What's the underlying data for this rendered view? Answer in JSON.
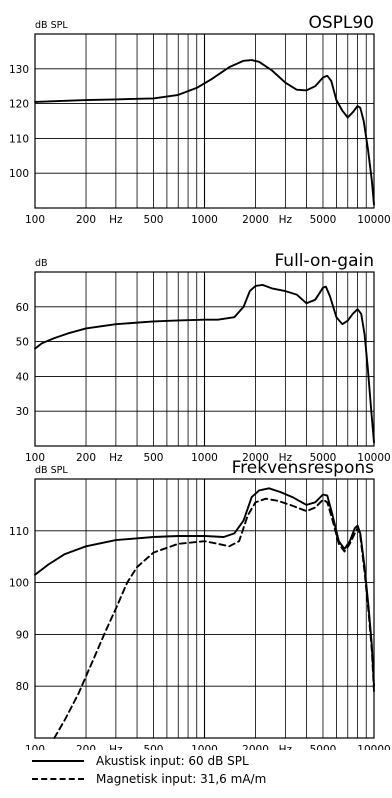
{
  "chart_data": [
    {
      "type": "line",
      "title": "OSPL90",
      "ylabel": "dB SPL",
      "xscale": "log",
      "xlim": [
        100,
        10000
      ],
      "ylim": [
        90,
        140
      ],
      "grid": true,
      "x_tick_labels": [
        "100",
        "200",
        "Hz",
        "500",
        "1000",
        "2000",
        "Hz",
        "5000",
        "10000"
      ],
      "y_tick_labels": [
        "130",
        "120",
        "110",
        "100"
      ],
      "series": [
        {
          "dash": false,
          "points": [
            [
              100,
              120.5
            ],
            [
              150,
              120.8
            ],
            [
              200,
              121
            ],
            [
              300,
              121.2
            ],
            [
              500,
              121.5
            ],
            [
              700,
              122.5
            ],
            [
              900,
              124.5
            ],
            [
              1100,
              127
            ],
            [
              1400,
              130.5
            ],
            [
              1700,
              132.3
            ],
            [
              1900,
              132.5
            ],
            [
              2100,
              132
            ],
            [
              2500,
              129.5
            ],
            [
              3000,
              126
            ],
            [
              3500,
              124
            ],
            [
              4000,
              123.8
            ],
            [
              4500,
              125
            ],
            [
              5000,
              127.5
            ],
            [
              5300,
              128
            ],
            [
              5600,
              126.5
            ],
            [
              6000,
              121
            ],
            [
              6500,
              118
            ],
            [
              7000,
              116
            ],
            [
              7500,
              117.5
            ],
            [
              8000,
              119.3
            ],
            [
              8300,
              118.8
            ],
            [
              8700,
              115
            ],
            [
              9200,
              107
            ],
            [
              9700,
              98
            ],
            [
              10000,
              91
            ]
          ]
        }
      ]
    },
    {
      "type": "line",
      "title": "Full-on-gain",
      "ylabel": "dB",
      "xscale": "log",
      "xlim": [
        100,
        10000
      ],
      "ylim": [
        20,
        70
      ],
      "grid": true,
      "x_tick_labels": [
        "100",
        "200",
        "Hz",
        "500",
        "1000",
        "2000",
        "Hz",
        "5000",
        "10000"
      ],
      "y_tick_labels": [
        "60",
        "50",
        "40",
        "30"
      ],
      "series": [
        {
          "dash": false,
          "points": [
            [
              100,
              48
            ],
            [
              110,
              49.5
            ],
            [
              130,
              51
            ],
            [
              160,
              52.5
            ],
            [
              200,
              53.8
            ],
            [
              300,
              55
            ],
            [
              500,
              55.8
            ],
            [
              700,
              56.1
            ],
            [
              1000,
              56.3
            ],
            [
              1200,
              56.3
            ],
            [
              1500,
              57
            ],
            [
              1700,
              60
            ],
            [
              1850,
              64.5
            ],
            [
              2000,
              66
            ],
            [
              2200,
              66.3
            ],
            [
              2500,
              65.3
            ],
            [
              3000,
              64.5
            ],
            [
              3500,
              63.5
            ],
            [
              4000,
              61
            ],
            [
              4500,
              62
            ],
            [
              5000,
              65.5
            ],
            [
              5200,
              65.8
            ],
            [
              5500,
              63
            ],
            [
              6000,
              57
            ],
            [
              6500,
              55
            ],
            [
              7000,
              56
            ],
            [
              7500,
              58
            ],
            [
              8000,
              59.3
            ],
            [
              8400,
              58
            ],
            [
              8800,
              52
            ],
            [
              9200,
              42
            ],
            [
              9600,
              31
            ],
            [
              10000,
              21
            ]
          ]
        }
      ]
    },
    {
      "type": "line",
      "title": "Frekvensrespons",
      "ylabel": "dB SPL",
      "xscale": "log",
      "xlim": [
        100,
        10000
      ],
      "ylim": [
        70,
        120
      ],
      "grid": true,
      "x_tick_labels": [
        "100",
        "200",
        "Hz",
        "500",
        "1000",
        "2000",
        "Hz",
        "5000",
        "10000"
      ],
      "y_tick_labels": [
        "110",
        "100",
        "90",
        "80"
      ],
      "series": [
        {
          "dash": false,
          "points": [
            [
              100,
              101.5
            ],
            [
              120,
              103.5
            ],
            [
              150,
              105.5
            ],
            [
              200,
              107
            ],
            [
              300,
              108.2
            ],
            [
              500,
              108.8
            ],
            [
              700,
              109
            ],
            [
              1000,
              109
            ],
            [
              1300,
              108.8
            ],
            [
              1500,
              109.5
            ],
            [
              1700,
              112
            ],
            [
              1900,
              116.5
            ],
            [
              2100,
              117.8
            ],
            [
              2400,
              118.2
            ],
            [
              2800,
              117.5
            ],
            [
              3300,
              116.5
            ],
            [
              4000,
              115
            ],
            [
              4500,
              115.5
            ],
            [
              5000,
              117
            ],
            [
              5300,
              116.8
            ],
            [
              5700,
              113
            ],
            [
              6200,
              108
            ],
            [
              6700,
              106.5
            ],
            [
              7200,
              108
            ],
            [
              7700,
              110.5
            ],
            [
              8000,
              111
            ],
            [
              8300,
              109.5
            ],
            [
              8800,
              103
            ],
            [
              9300,
              95
            ],
            [
              9700,
              88
            ],
            [
              10000,
              80
            ]
          ]
        },
        {
          "dash": true,
          "points": [
            [
              130,
              70
            ],
            [
              150,
              73.5
            ],
            [
              180,
              78.5
            ],
            [
              220,
              85
            ],
            [
              260,
              90.5
            ],
            [
              300,
              95
            ],
            [
              350,
              100
            ],
            [
              400,
              103
            ],
            [
              500,
              105.8
            ],
            [
              700,
              107.5
            ],
            [
              1000,
              108
            ],
            [
              1200,
              107.5
            ],
            [
              1400,
              107
            ],
            [
              1600,
              108
            ],
            [
              1800,
              113
            ],
            [
              2000,
              115.5
            ],
            [
              2300,
              116.2
            ],
            [
              2700,
              115.8
            ],
            [
              3200,
              115
            ],
            [
              4000,
              113.8
            ],
            [
              4500,
              114.5
            ],
            [
              5000,
              116
            ],
            [
              5300,
              115.5
            ],
            [
              5700,
              112
            ],
            [
              6200,
              107.5
            ],
            [
              6700,
              106
            ],
            [
              7200,
              107.5
            ],
            [
              7700,
              109.5
            ],
            [
              8000,
              110.5
            ],
            [
              8300,
              109
            ],
            [
              8800,
              102
            ],
            [
              9300,
              94
            ],
            [
              9700,
              87
            ],
            [
              10000,
              79
            ]
          ]
        }
      ]
    }
  ],
  "legend": {
    "solid_label": "Akustisk input: 60 dB SPL",
    "dashed_label": "Magnetisk input: 31,6 mA/m"
  }
}
